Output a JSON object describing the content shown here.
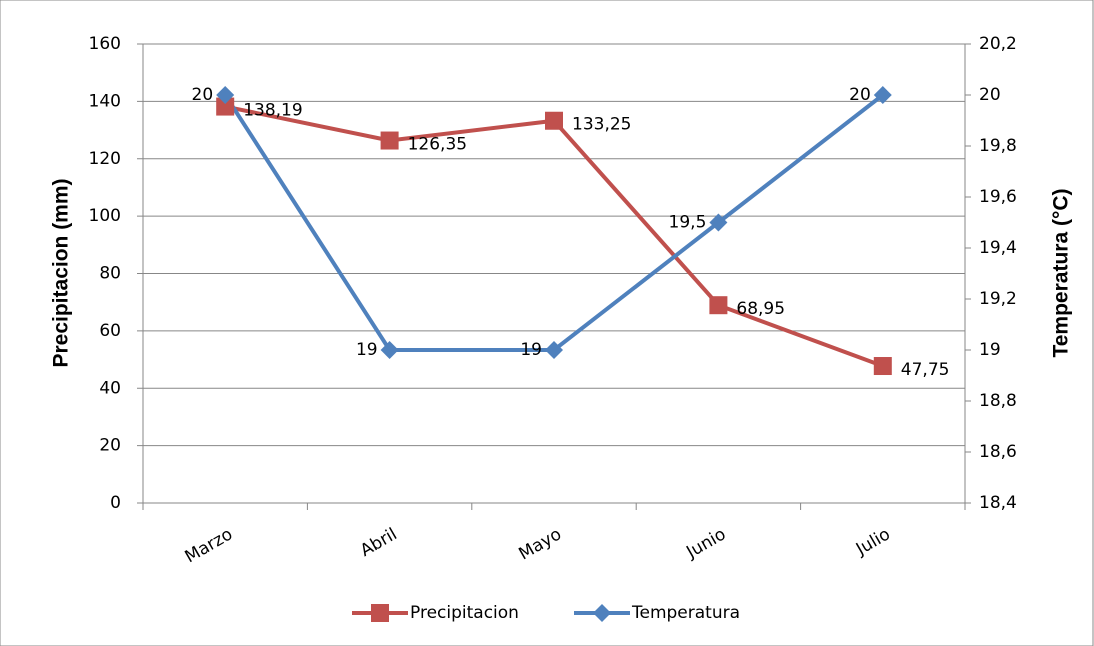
{
  "chart_data": {
    "type": "line",
    "categories": [
      "Marzo",
      "Abril",
      "Mayo",
      "Junio",
      "Julio"
    ],
    "series": [
      {
        "name": "Precipitacion",
        "color": "#c0504d",
        "marker": "square",
        "values": [
          138.19,
          126.35,
          133.25,
          68.95,
          47.75
        ],
        "value_labels": [
          "138,19",
          "126,35",
          "133,25",
          "68,95",
          "47,75"
        ]
      },
      {
        "name": "Temperatura",
        "color": "#4f81bd",
        "marker": "diamond",
        "axis": "y2",
        "values": [
          20,
          19,
          19,
          19.5,
          20
        ],
        "value_labels": [
          "20",
          "19",
          "19",
          "19,5",
          "20"
        ]
      }
    ],
    "ylabel": "Precipitacion (mm)",
    "y2label": "Temperatura (°C)",
    "ylim": [
      0,
      160
    ],
    "yticks": [
      0,
      20,
      40,
      60,
      80,
      100,
      120,
      140,
      160
    ],
    "y2lim": [
      18.4,
      20.2
    ],
    "y2ticks": [
      {
        "value": 18.4,
        "label": "18,4"
      },
      {
        "value": 18.6,
        "label": "18,6"
      },
      {
        "value": 18.8,
        "label": "18,8"
      },
      19,
      {
        "value": 19.2,
        "label": "19,2"
      },
      {
        "value": 19.4,
        "label": "19,4"
      },
      {
        "value": 19.6,
        "label": "19,6"
      },
      {
        "value": 19.8,
        "label": "19,8"
      },
      20,
      {
        "value": 20.2,
        "label": "20,2"
      }
    ],
    "grid": true,
    "legend": "bottom"
  }
}
